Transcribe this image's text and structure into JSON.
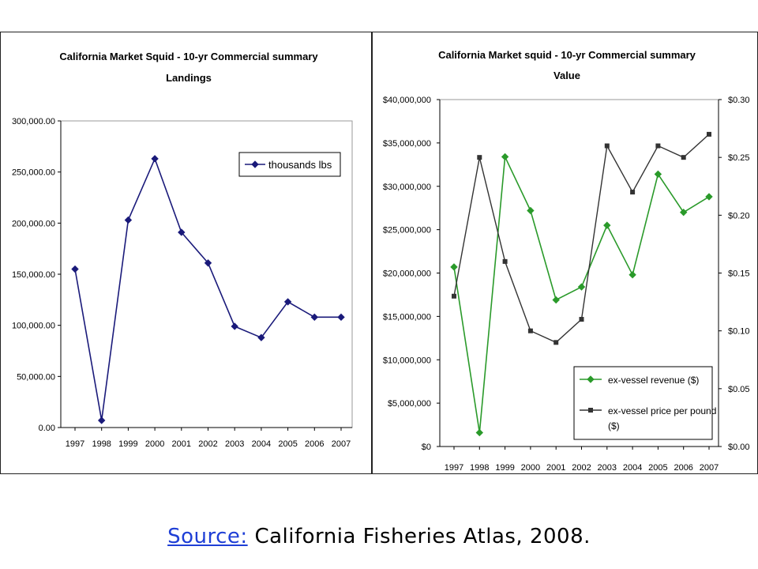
{
  "chart_data": [
    {
      "type": "line",
      "title": "California Market Squid  - 10-yr Commercial summary",
      "subtitle": "Landings",
      "categories": [
        "1997",
        "1998",
        "1999",
        "2000",
        "2001",
        "2002",
        "2003",
        "2004",
        "2005",
        "2006",
        "2007"
      ],
      "series": [
        {
          "name": "thousands lbs",
          "color": "#1a1a7a",
          "marker": "diamond",
          "values": [
            155000,
            7000,
            203000,
            263000,
            191000,
            161000,
            99000,
            88000,
            123000,
            108000,
            108000
          ]
        }
      ],
      "ylim": [
        0,
        300000
      ],
      "yticks": [
        "300,000.00",
        "250,000.00",
        "200,000.00",
        "150,000.00",
        "100,000.00",
        "50,000.00",
        "0.00"
      ],
      "legend": "top-right"
    },
    {
      "type": "line",
      "title": "California Market squid - 10-yr Commercial summary",
      "subtitle": "Value",
      "categories": [
        "1997",
        "1998",
        "1999",
        "2000",
        "2001",
        "2002",
        "2003",
        "2004",
        "2005",
        "2006",
        "2007"
      ],
      "series": [
        {
          "name": "ex-vessel revenue ($)",
          "color": "#2a9a2a",
          "marker": "diamond",
          "axis": "left",
          "values": [
            20700000,
            1600000,
            33400000,
            27200000,
            16900000,
            18400000,
            25500000,
            19800000,
            31400000,
            27000000,
            28800000
          ]
        },
        {
          "name": "ex-vessel price per pound ($)",
          "color": "#333333",
          "marker": "square",
          "axis": "right",
          "values": [
            0.13,
            0.25,
            0.16,
            0.1,
            0.09,
            0.11,
            0.26,
            0.22,
            0.26,
            0.25,
            0.27
          ]
        }
      ],
      "ylim": [
        0,
        40000000
      ],
      "y2lim": [
        0,
        0.3
      ],
      "yticks": [
        "$40,000,000",
        "$35,000,000",
        "$30,000,000",
        "$25,000,000",
        "$20,000,000",
        "$15,000,000",
        "$10,000,000",
        "$5,000,000",
        "$0"
      ],
      "y2ticks": [
        "$0.30",
        "$0.25",
        "$0.20",
        "$0.15",
        "$0.10",
        "$0.05",
        "$0.00"
      ],
      "legend": "bottom-right"
    }
  ],
  "source": {
    "link_label": "Source:",
    "text": "California Fisheries Atlas, 2008."
  }
}
